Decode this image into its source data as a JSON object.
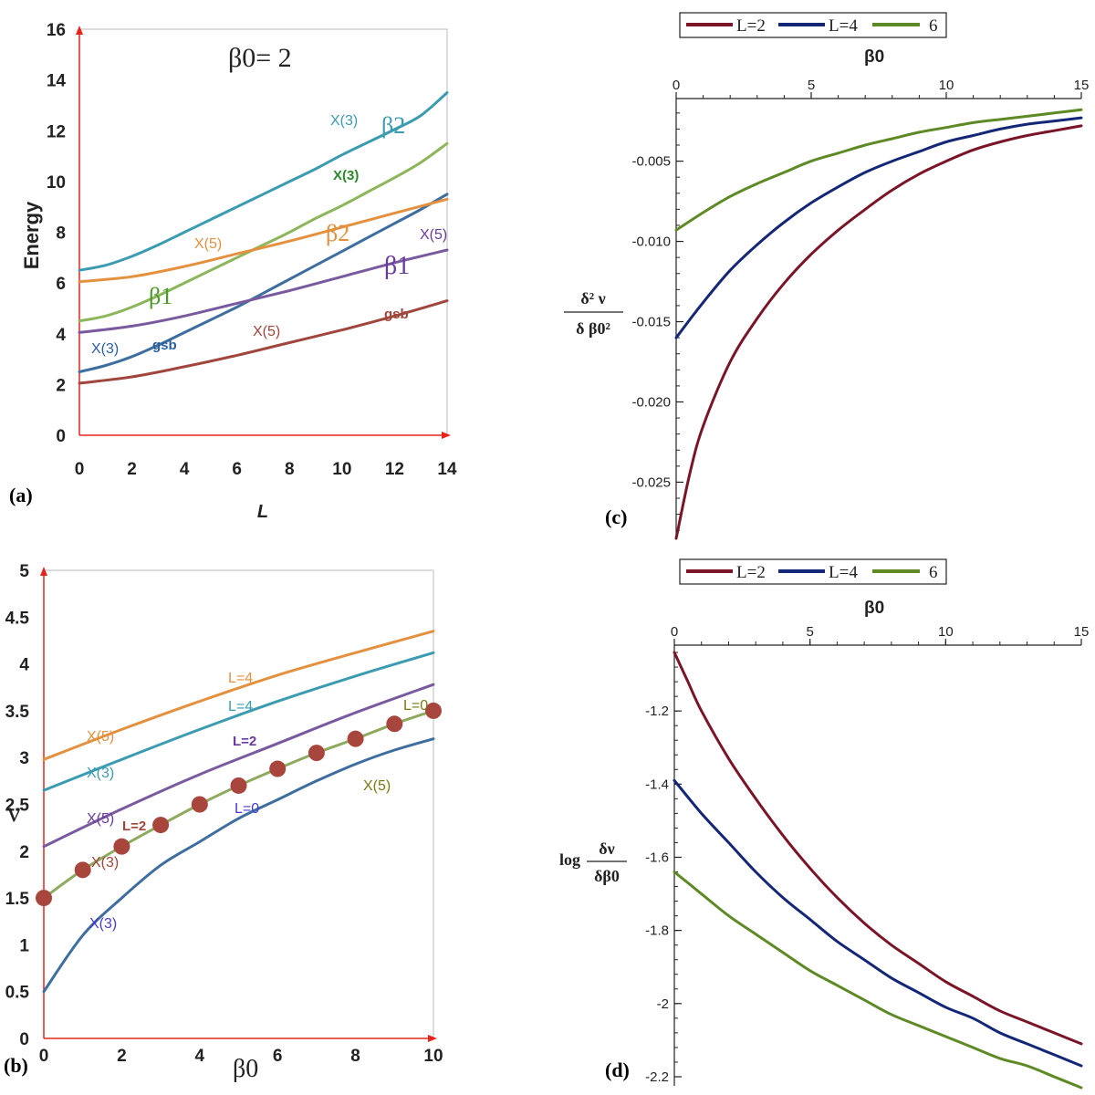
{
  "colors": {
    "blue": "#3e6e9f",
    "teal": "#3b9bb0",
    "lgreen": "#8db65a",
    "orange": "#e3913e",
    "purple": "#7a5a9e",
    "brown": "#a0463c",
    "maroon": "#7a1528",
    "navy": "#142777",
    "olive": "#5d8a25",
    "red": "#e8231b",
    "marker": "#a8453d",
    "mline": "#8eaa5e"
  },
  "chart_data": [
    {
      "panel": "(a)",
      "type": "line",
      "title": "β0= 2",
      "xlabel": "L",
      "ylabel": "Energy",
      "xlim": [
        0,
        14
      ],
      "ylim": [
        0,
        16
      ],
      "xticks": [
        "0",
        "2",
        "4",
        "6",
        "8",
        "10",
        "12",
        "14"
      ],
      "yticks": [
        "0",
        "2",
        "4",
        "6",
        "8",
        "10",
        "12",
        "14",
        "16"
      ],
      "series": [
        {
          "name": "X(3) gsb",
          "color": "#3e6e9f",
          "x": [
            0,
            1,
            2,
            3,
            4,
            5,
            6,
            7,
            8,
            9,
            10,
            11,
            12,
            13,
            14
          ],
          "y": [
            2.5,
            2.75,
            3.1,
            3.55,
            4.05,
            4.55,
            5.05,
            5.6,
            6.15,
            6.7,
            7.25,
            7.8,
            8.35,
            8.9,
            9.5
          ]
        },
        {
          "name": "X(3) β2",
          "color": "#3b9bb0",
          "x": [
            0,
            1,
            2,
            3,
            4,
            5,
            6,
            7,
            8,
            9,
            10,
            11,
            12,
            13,
            14
          ],
          "y": [
            6.5,
            6.7,
            7.05,
            7.5,
            8.0,
            8.5,
            9.0,
            9.5,
            10.0,
            10.5,
            11.05,
            11.55,
            12.05,
            12.6,
            13.5
          ]
        },
        {
          "name": "X(3) β1",
          "color": "#8db65a",
          "x": [
            0,
            1,
            2,
            3,
            4,
            5,
            6,
            7,
            8,
            9,
            10,
            11,
            12,
            13,
            14
          ],
          "y": [
            4.5,
            4.7,
            5.05,
            5.5,
            6.0,
            6.5,
            7.0,
            7.5,
            8.0,
            8.55,
            9.05,
            9.6,
            10.15,
            10.75,
            11.5
          ]
        },
        {
          "name": "X(5) β2",
          "color": "#e3913e",
          "x": [
            0,
            2,
            4,
            6,
            8,
            10,
            12,
            14
          ],
          "y": [
            6.05,
            6.25,
            6.65,
            7.15,
            7.65,
            8.2,
            8.75,
            9.3
          ]
        },
        {
          "name": "X(5) β1",
          "color": "#7a5a9e",
          "x": [
            0,
            2,
            4,
            6,
            8,
            10,
            12,
            14
          ],
          "y": [
            4.05,
            4.3,
            4.7,
            5.2,
            5.7,
            6.25,
            6.8,
            7.3
          ]
        },
        {
          "name": "X(5) gsb",
          "color": "#a0463c",
          "x": [
            0,
            2,
            4,
            6,
            8,
            10,
            12,
            14
          ],
          "y": [
            2.05,
            2.3,
            2.7,
            3.15,
            3.65,
            4.15,
            4.7,
            5.3
          ]
        }
      ],
      "annotations": [
        "X(3)",
        "β2",
        "X(3)",
        "X(5)",
        "β2",
        "X(5)",
        "β1",
        "β1",
        "X(3)",
        "gsb",
        "X(5)",
        "gsb"
      ]
    },
    {
      "panel": "(b)",
      "type": "line",
      "xlabel": "β0",
      "ylabel": "ν",
      "xlim": [
        0,
        10
      ],
      "ylim": [
        0,
        5
      ],
      "xticks": [
        "0",
        "2",
        "4",
        "6",
        "8",
        "10"
      ],
      "yticks": [
        "0",
        "0.5",
        "1",
        "1.5",
        "2",
        "2.5",
        "3",
        "3.5",
        "4",
        "4.5",
        "5"
      ],
      "series": [
        {
          "name": "X(5) L=4",
          "color": "#e3913e",
          "x": [
            0,
            2,
            4,
            6,
            8,
            10
          ],
          "y": [
            2.98,
            3.3,
            3.6,
            3.88,
            4.12,
            4.35
          ]
        },
        {
          "name": "X(3) L=4",
          "color": "#3b9bb0",
          "x": [
            0,
            2,
            4,
            6,
            8,
            10
          ],
          "y": [
            2.65,
            2.98,
            3.3,
            3.6,
            3.87,
            4.12
          ]
        },
        {
          "name": "X(5) L=2",
          "color": "#7a5a9e",
          "x": [
            0,
            2,
            4,
            6,
            8,
            10
          ],
          "y": [
            2.05,
            2.45,
            2.82,
            3.15,
            3.48,
            3.78
          ]
        },
        {
          "name": "X(3) L=0",
          "color": "#3e6e9f",
          "x": [
            0,
            1,
            2,
            3,
            4,
            5,
            6,
            7,
            8,
            9,
            10
          ],
          "y": [
            0.5,
            1.1,
            1.5,
            1.85,
            2.1,
            2.35,
            2.55,
            2.75,
            2.93,
            3.08,
            3.2
          ]
        },
        {
          "name": "L=0",
          "color": "#8eaa5e",
          "x": [
            0,
            1,
            2,
            3,
            4,
            5,
            6,
            7,
            8,
            9,
            10
          ],
          "y": [
            1.5,
            1.8,
            2.05,
            2.28,
            2.5,
            2.7,
            2.88,
            3.05,
            3.2,
            3.36,
            3.5
          ]
        }
      ],
      "points": {
        "name": "L=0 markers",
        "x": [
          0,
          1,
          2,
          3,
          4,
          5,
          6,
          7,
          8,
          9,
          10
        ],
        "y": [
          1.5,
          1.8,
          2.05,
          2.28,
          2.5,
          2.7,
          2.88,
          3.05,
          3.2,
          3.36,
          3.5
        ]
      },
      "annotations": [
        "L=4",
        "X(5)",
        "L=4",
        "X(3)",
        "L=2",
        "X(5)",
        "L=2",
        "X(3)",
        "L=0",
        "X(5)",
        "L=0",
        "X(3)"
      ]
    },
    {
      "panel": "(c)",
      "type": "line",
      "xlabel": "β0",
      "ylabel": {
        "num": "δ² ν",
        "den": "δ β0²"
      },
      "xlim": [
        0,
        15
      ],
      "ylim": [
        -0.0285,
        -0.0011
      ],
      "xticks": [
        "0",
        "5",
        "10",
        "15"
      ],
      "yticks": [
        "-0.005",
        "-0.010",
        "-0.015",
        "-0.020",
        "-0.025"
      ],
      "legend": [
        "L=2",
        "L=4",
        "6"
      ],
      "series": [
        {
          "name": "L=2",
          "color": "#7a1528",
          "x": [
            0,
            0.5,
            1,
            2,
            3,
            4,
            5,
            6,
            7,
            8,
            9,
            10,
            11,
            12,
            13,
            14,
            15
          ],
          "y": [
            -0.0285,
            -0.0245,
            -0.0215,
            -0.0175,
            -0.0148,
            -0.0126,
            -0.0108,
            -0.0093,
            -0.008,
            -0.0068,
            -0.0058,
            -0.005,
            -0.0043,
            -0.0038,
            -0.0034,
            -0.0031,
            -0.0028
          ]
        },
        {
          "name": "L=4",
          "color": "#142777",
          "x": [
            0,
            1,
            2,
            3,
            4,
            5,
            6,
            7,
            8,
            9,
            10,
            11,
            12,
            13,
            14,
            15
          ],
          "y": [
            -0.016,
            -0.0138,
            -0.0118,
            -0.0102,
            -0.0088,
            -0.0076,
            -0.0066,
            -0.0057,
            -0.005,
            -0.0044,
            -0.0038,
            -0.0034,
            -0.003,
            -0.0027,
            -0.0025,
            -0.0023
          ]
        },
        {
          "name": "6",
          "color": "#5d8a25",
          "x": [
            0,
            1,
            2,
            3,
            4,
            5,
            6,
            7,
            8,
            9,
            10,
            11,
            12,
            13,
            14,
            15
          ],
          "y": [
            -0.0093,
            -0.0082,
            -0.0072,
            -0.0064,
            -0.0057,
            -0.005,
            -0.0045,
            -0.004,
            -0.0036,
            -0.0032,
            -0.0029,
            -0.0026,
            -0.0024,
            -0.0022,
            -0.002,
            -0.0018
          ]
        }
      ]
    },
    {
      "panel": "(d)",
      "type": "line",
      "xlabel": "β0",
      "ylabel": {
        "prefix": "log",
        "num": "δν",
        "den": "δβ0"
      },
      "xlim": [
        0,
        15
      ],
      "ylim": [
        -2.225,
        -1.02
      ],
      "xticks": [
        "0",
        "5",
        "10",
        "15"
      ],
      "yticks": [
        "-1.2",
        "-1.4",
        "-1.6",
        "-1.8",
        "-2",
        "-2.2"
      ],
      "legend": [
        "L=2",
        "L=4",
        "6"
      ],
      "series": [
        {
          "name": "L=2",
          "color": "#7a1528",
          "x": [
            0,
            0.5,
            1,
            2,
            3,
            4,
            5,
            6,
            7,
            8,
            9,
            10,
            11,
            12,
            13,
            14,
            15
          ],
          "y": [
            -1.04,
            -1.12,
            -1.2,
            -1.33,
            -1.44,
            -1.54,
            -1.63,
            -1.71,
            -1.78,
            -1.84,
            -1.89,
            -1.94,
            -1.98,
            -2.02,
            -2.05,
            -2.08,
            -2.11
          ]
        },
        {
          "name": "L=4",
          "color": "#142777",
          "x": [
            0,
            1,
            2,
            3,
            4,
            5,
            6,
            7,
            8,
            9,
            10,
            11,
            12,
            13,
            14,
            15
          ],
          "y": [
            -1.39,
            -1.48,
            -1.56,
            -1.64,
            -1.71,
            -1.77,
            -1.83,
            -1.88,
            -1.93,
            -1.97,
            -2.01,
            -2.04,
            -2.08,
            -2.11,
            -2.14,
            -2.17
          ]
        },
        {
          "name": "6",
          "color": "#5d8a25",
          "x": [
            0,
            1,
            2,
            3,
            4,
            5,
            6,
            7,
            8,
            9,
            10,
            11,
            12,
            13,
            14,
            15
          ],
          "y": [
            -1.64,
            -1.7,
            -1.76,
            -1.81,
            -1.86,
            -1.91,
            -1.95,
            -1.99,
            -2.03,
            -2.06,
            -2.09,
            -2.12,
            -2.15,
            -2.17,
            -2.2,
            -2.23
          ]
        }
      ]
    }
  ]
}
